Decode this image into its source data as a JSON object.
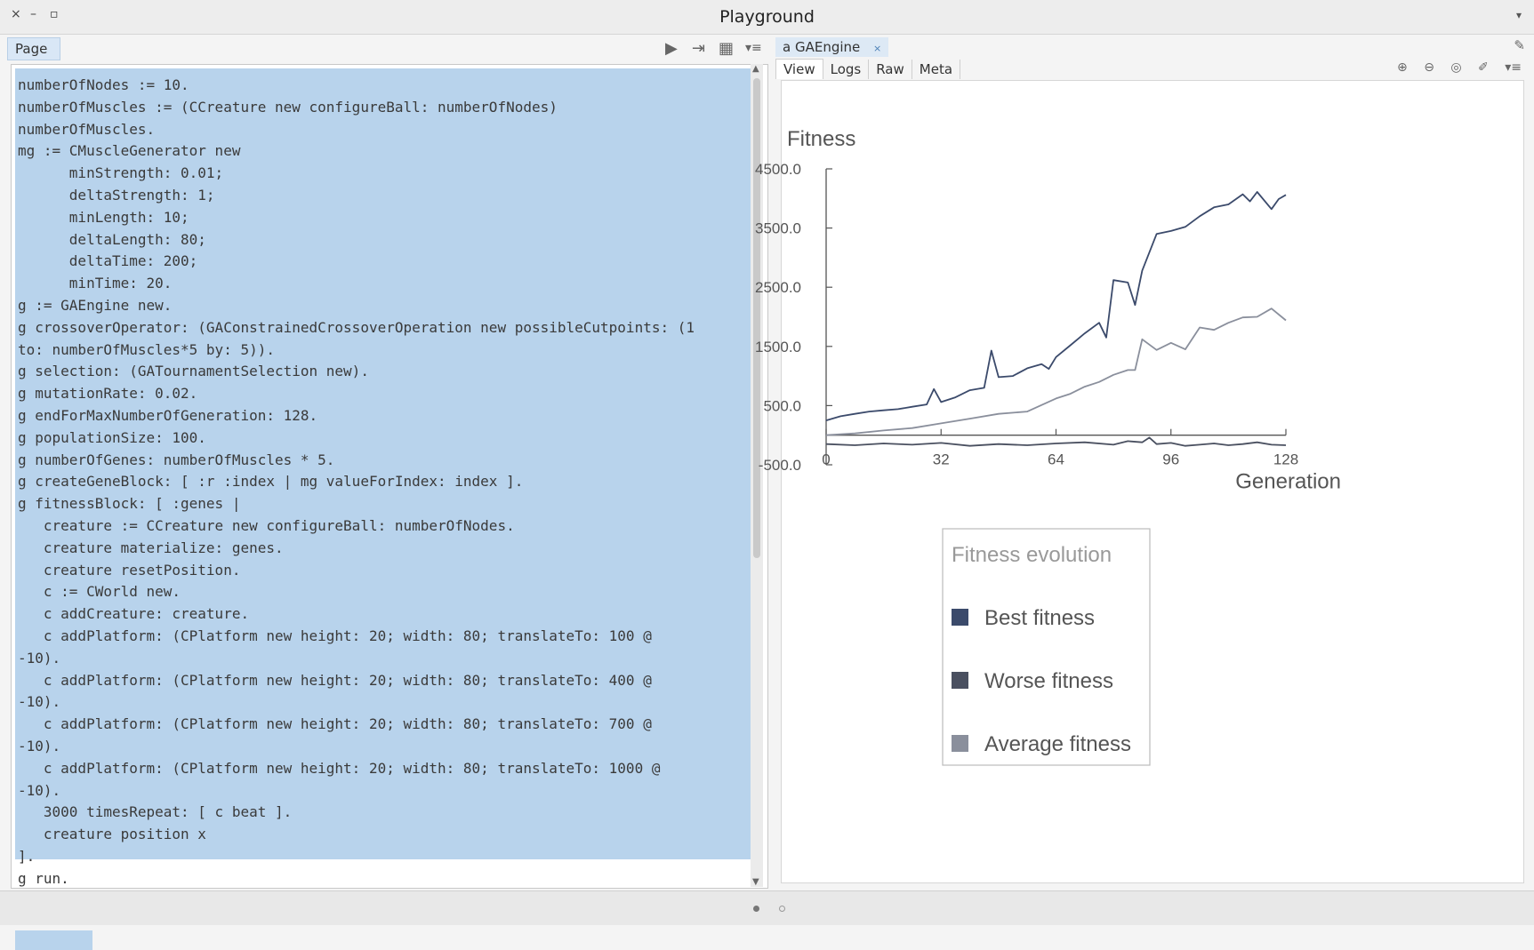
{
  "window": {
    "title": "Playground",
    "controls": [
      "×",
      "–",
      "▫"
    ],
    "menu_glyph": "▾"
  },
  "left": {
    "tab_label": "Page",
    "tools": [
      "play-icon",
      "export-icon",
      "grid-icon",
      "menu-icon"
    ],
    "code": "numberOfNodes := 10.\nnumberOfMuscles := (CCreature new configureBall: numberOfNodes)\nnumberOfMuscles.\nmg := CMuscleGenerator new\n      minStrength: 0.01;\n      deltaStrength: 1;\n      minLength: 10;\n      deltaLength: 80;\n      deltaTime: 200;\n      minTime: 20.\ng := GAEngine new.\ng crossoverOperator: (GAConstrainedCrossoverOperation new possibleCutpoints: (1\nto: numberOfMuscles*5 by: 5)).\ng selection: (GATournamentSelection new).\ng mutationRate: 0.02.\ng endForMaxNumberOfGeneration: 128.\ng populationSize: 100.\ng numberOfGenes: numberOfMuscles * 5.\ng createGeneBlock: [ :r :index | mg valueForIndex: index ].\ng fitnessBlock: [ :genes |\n   creature := CCreature new configureBall: numberOfNodes.\n   creature materialize: genes.\n   creature resetPosition.\n   c := CWorld new.\n   c addCreature: creature.\n   c addPlatform: (CPlatform new height: 20; width: 80; translateTo: 100 @\n-10).\n   c addPlatform: (CPlatform new height: 20; width: 80; translateTo: 400 @\n-10).\n   c addPlatform: (CPlatform new height: 20; width: 80; translateTo: 700 @\n-10).\n   c addPlatform: (CPlatform new height: 20; width: 80; translateTo: 1000 @\n-10).\n   3000 timesRepeat: [ c beat ].\n   creature position x\n].\ng run."
  },
  "right": {
    "tab_label": "a GAEngine",
    "tab_close": "×",
    "subtabs": [
      "View",
      "Logs",
      "Raw",
      "Meta"
    ],
    "tools": [
      "zoom-in-icon",
      "zoom-out-icon",
      "target-icon",
      "brush-icon",
      "menu-icon"
    ]
  },
  "chart_data": {
    "type": "line",
    "ylabel": "Fitness",
    "xlabel": "Generation",
    "ylim": [
      -500,
      4500
    ],
    "xlim": [
      0,
      128
    ],
    "yticks": [
      -500,
      500,
      1500,
      2500,
      3500,
      4500
    ],
    "ytick_labels": [
      "-500.0",
      "500.0",
      "1500.0",
      "2500.0",
      "3500.0",
      "4500.0"
    ],
    "xticks": [
      0,
      32,
      64,
      96,
      128
    ],
    "xtick_labels": [
      "0",
      "32",
      "64",
      "96",
      "128"
    ],
    "legend": {
      "title": "Fitness evolution",
      "placement": "bottom"
    },
    "colors": {
      "best": "#3b4a6b",
      "worse": "#4a5060",
      "average": "#8a8f9c"
    },
    "series": [
      {
        "name": "Best fitness",
        "x": [
          0,
          4,
          8,
          12,
          16,
          20,
          24,
          28,
          30,
          32,
          36,
          40,
          44,
          46,
          48,
          52,
          56,
          60,
          62,
          64,
          68,
          72,
          76,
          78,
          80,
          84,
          86,
          88,
          92,
          96,
          100,
          104,
          108,
          112,
          116,
          118,
          120,
          124,
          126,
          128
        ],
        "values": [
          250,
          320,
          360,
          400,
          420,
          440,
          480,
          520,
          780,
          560,
          640,
          760,
          800,
          1430,
          980,
          1000,
          1130,
          1200,
          1120,
          1320,
          1520,
          1720,
          1900,
          1650,
          2620,
          2580,
          2200,
          2780,
          3400,
          3450,
          3520,
          3700,
          3850,
          3900,
          4070,
          3950,
          4110,
          3820,
          3990,
          4060
        ]
      },
      {
        "name": "Worse fitness",
        "x": [
          0,
          8,
          16,
          24,
          32,
          40,
          48,
          56,
          64,
          72,
          80,
          84,
          88,
          90,
          92,
          96,
          100,
          104,
          108,
          112,
          116,
          120,
          124,
          128
        ],
        "values": [
          -150,
          -170,
          -140,
          -160,
          -130,
          -180,
          -150,
          -170,
          -140,
          -120,
          -160,
          -100,
          -120,
          -40,
          -150,
          -130,
          -180,
          -160,
          -140,
          -170,
          -150,
          -120,
          -160,
          -170
        ]
      },
      {
        "name": "Average fitness",
        "x": [
          0,
          8,
          16,
          24,
          32,
          40,
          48,
          56,
          64,
          68,
          72,
          76,
          80,
          84,
          86,
          88,
          92,
          96,
          100,
          104,
          108,
          112,
          116,
          120,
          124,
          128
        ],
        "values": [
          0,
          30,
          80,
          120,
          200,
          280,
          360,
          400,
          620,
          700,
          820,
          900,
          1020,
          1100,
          1100,
          1620,
          1440,
          1560,
          1450,
          1820,
          1780,
          1900,
          1990,
          2000,
          2140,
          1940
        ]
      }
    ]
  }
}
